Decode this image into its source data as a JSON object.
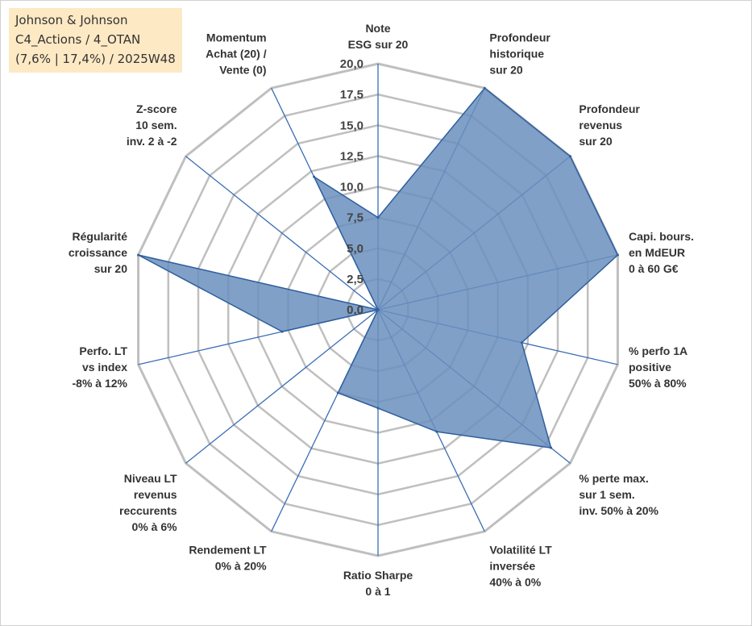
{
  "info": {
    "line1": "Johnson & Johnson",
    "line2": "C4_Actions / 4_OTAN",
    "line3": "(7,6% | 17,4%) / 2025W48"
  },
  "colors": {
    "fill": "#6a8fbd",
    "stroke": "#2e5f9e",
    "grid": "#bfbfbf",
    "spoke": "#3a6db5"
  },
  "chart_data": {
    "type": "radar",
    "title": "",
    "rlim": [
      0,
      20
    ],
    "grid": true,
    "tick_values": [
      0,
      2.5,
      5,
      7.5,
      10,
      12.5,
      15,
      17.5,
      20
    ],
    "tick_labels": [
      "0,0",
      "2,5",
      "5,0",
      "7,5",
      "10,0",
      "12,5",
      "15,0",
      "17,5",
      "20,0"
    ],
    "categories": [
      [
        "Note",
        "ESG sur 20"
      ],
      [
        "Profondeur",
        "historique",
        "sur 20"
      ],
      [
        "Profondeur",
        "revenus",
        "sur 20"
      ],
      [
        "Capi. bours.",
        "en MdEUR",
        "0 à 60 G€"
      ],
      [
        "% perfo 1A",
        "positive",
        "50% à 80%"
      ],
      [
        "% perte max.",
        "sur 1 sem.",
        "inv. 50% à 20%"
      ],
      [
        "Volatilité LT",
        "inversée",
        "40% à 0%"
      ],
      [
        "Ratio Sharpe",
        "0 à 1"
      ],
      [
        "Rendement LT",
        "0% à 20%"
      ],
      [
        "Niveau LT",
        "revenus",
        "reccurents",
        "0% à 6%"
      ],
      [
        "Perfo. LT",
        "vs index",
        "-8% à 12%"
      ],
      [
        "Régularité",
        "croissance",
        "sur 20"
      ],
      [
        "Z-score",
        "10 sem.",
        "inv. 2 à -2"
      ],
      [
        "Momentum",
        "Achat (20) /",
        "Vente (0)"
      ]
    ],
    "series": [
      {
        "name": "Johnson & Johnson",
        "values": [
          7.5,
          20,
          20,
          20,
          12,
          18,
          11,
          8,
          7.5,
          0,
          8,
          20,
          0,
          12
        ]
      }
    ]
  }
}
